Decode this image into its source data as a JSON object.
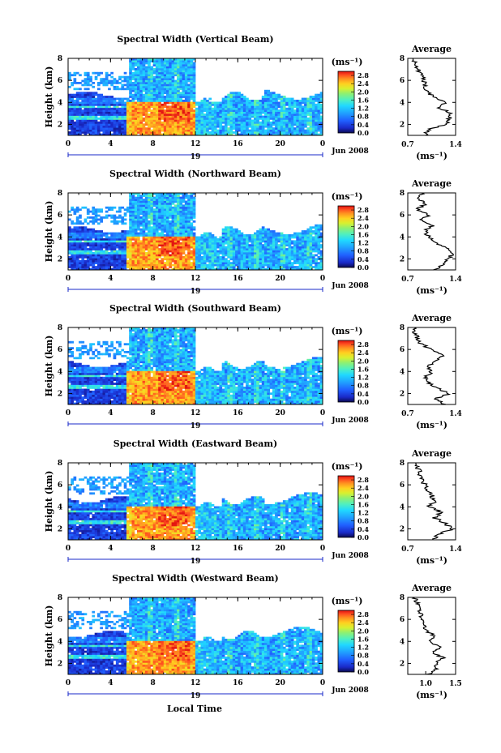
{
  "figure": {
    "xlabel": "Local Time",
    "date_label": "Jun 2008",
    "day_label": "19",
    "avg_title": "Average",
    "avg_xlabel": "(ms⁻¹)",
    "colorbar_unit": "(ms⁻¹)",
    "colorbar_ticks": [
      "0.0",
      "0.4",
      "0.8",
      "1.2",
      "1.6",
      "2.0",
      "2.4",
      "2.8"
    ],
    "colorbar_colors": [
      "#0a0a50",
      "#1a2ac8",
      "#2060ff",
      "#20a0ff",
      "#20d8ff",
      "#50f0c0",
      "#90f070",
      "#d8f030",
      "#ffd020",
      "#ff9020",
      "#ff5020",
      "#e01010"
    ]
  },
  "chart_data": [
    {
      "type": "heatmap",
      "title": "Spectral Width (Vertical Beam)",
      "ylabel": "Height (km)",
      "x_ticks": [
        "0",
        "4",
        "8",
        "12",
        "16",
        "20",
        "0"
      ],
      "y_ticks": [
        "2",
        "4",
        "6",
        "8"
      ],
      "xlim": [
        0,
        24
      ],
      "ylim": [
        1,
        8
      ],
      "avg_profile": {
        "title": "Average",
        "x_ticks": [
          "0.7",
          "1.4"
        ],
        "xlim": [
          0.7,
          1.4
        ],
        "y_ticks": [
          "2",
          "4",
          "6",
          "8"
        ],
        "heights": [
          1.0,
          1.5,
          2.0,
          2.5,
          3.0,
          3.5,
          4.0,
          4.5,
          5.0,
          5.5,
          6.0,
          6.5,
          7.0,
          7.5,
          8.0
        ],
        "values": [
          0.95,
          1.0,
          1.25,
          1.3,
          1.35,
          1.15,
          1.28,
          1.05,
          1.0,
          0.95,
          0.93,
          0.9,
          0.85,
          0.8,
          0.78
        ]
      }
    },
    {
      "type": "heatmap",
      "title": "Spectral Width (Northward Beam)",
      "ylabel": "Height (km)",
      "x_ticks": [
        "0",
        "4",
        "8",
        "12",
        "16",
        "20",
        "0"
      ],
      "y_ticks": [
        "2",
        "4",
        "6",
        "8"
      ],
      "xlim": [
        0,
        24
      ],
      "ylim": [
        1,
        8
      ],
      "avg_profile": {
        "title": "Average",
        "x_ticks": [
          "0.7",
          "1.4"
        ],
        "xlim": [
          0.7,
          1.4
        ],
        "y_ticks": [
          "2",
          "4",
          "6",
          "8"
        ],
        "heights": [
          1.0,
          1.5,
          2.0,
          2.5,
          3.0,
          3.5,
          4.0,
          4.5,
          5.0,
          5.5,
          6.0,
          6.5,
          7.0,
          7.5,
          8.0
        ],
        "values": [
          1.1,
          1.2,
          1.3,
          1.35,
          1.3,
          1.1,
          1.0,
          0.95,
          1.05,
          0.9,
          1.0,
          0.85,
          0.95,
          0.88,
          0.9
        ]
      }
    },
    {
      "type": "heatmap",
      "title": "Spectral Width (Southward Beam)",
      "ylabel": "Height (km)",
      "x_ticks": [
        "0",
        "4",
        "8",
        "12",
        "16",
        "20",
        "0"
      ],
      "y_ticks": [
        "2",
        "4",
        "6",
        "8"
      ],
      "xlim": [
        0,
        24
      ],
      "ylim": [
        1,
        8
      ],
      "avg_profile": {
        "title": "Average",
        "x_ticks": [
          "0.7",
          "1.4"
        ],
        "xlim": [
          0.7,
          1.4
        ],
        "y_ticks": [
          "2",
          "4",
          "6",
          "8"
        ],
        "heights": [
          1.0,
          1.5,
          2.0,
          2.5,
          3.0,
          3.5,
          4.0,
          4.5,
          5.0,
          5.5,
          6.0,
          6.5,
          7.0,
          7.5,
          8.0
        ],
        "values": [
          1.25,
          1.1,
          1.3,
          1.15,
          1.0,
          0.95,
          1.05,
          1.0,
          1.15,
          1.2,
          1.05,
          0.9,
          0.85,
          0.78,
          0.8
        ]
      }
    },
    {
      "type": "heatmap",
      "title": "Spectral Width (Eastward Beam)",
      "ylabel": "Height (km)",
      "x_ticks": [
        "0",
        "4",
        "8",
        "12",
        "16",
        "20",
        "0"
      ],
      "y_ticks": [
        "2",
        "4",
        "6",
        "8"
      ],
      "xlim": [
        0,
        24
      ],
      "ylim": [
        1,
        8
      ],
      "avg_profile": {
        "title": "Average",
        "x_ticks": [
          "0.7",
          "1.4"
        ],
        "xlim": [
          0.7,
          1.4
        ],
        "y_ticks": [
          "2",
          "4",
          "6",
          "8"
        ],
        "heights": [
          1.0,
          1.5,
          2.0,
          2.5,
          3.0,
          3.5,
          4.0,
          4.5,
          5.0,
          5.5,
          6.0,
          6.5,
          7.0,
          7.5,
          8.0
        ],
        "values": [
          1.05,
          1.15,
          1.35,
          1.25,
          1.1,
          1.2,
          1.0,
          1.1,
          1.05,
          0.98,
          0.95,
          0.9,
          0.88,
          0.85,
          0.82
        ]
      }
    },
    {
      "type": "heatmap",
      "title": "Spectral Width (Westward Beam)",
      "ylabel": "Height (km)",
      "x_ticks": [
        "0",
        "4",
        "8",
        "12",
        "16",
        "20",
        "0"
      ],
      "y_ticks": [
        "2",
        "4",
        "6",
        "8"
      ],
      "xlim": [
        0,
        24
      ],
      "ylim": [
        1,
        8
      ],
      "avg_profile": {
        "title": "Average",
        "x_ticks": [
          "1.0",
          "1.5"
        ],
        "xlim": [
          0.7,
          1.5
        ],
        "y_ticks": [
          "2",
          "4",
          "6",
          "8"
        ],
        "heights": [
          1.0,
          1.5,
          2.0,
          2.5,
          3.0,
          3.5,
          4.0,
          4.5,
          5.0,
          5.5,
          6.0,
          6.5,
          7.0,
          7.5,
          8.0
        ],
        "values": [
          1.05,
          1.2,
          1.15,
          1.3,
          1.1,
          1.25,
          1.05,
          1.15,
          1.0,
          0.98,
          0.95,
          0.92,
          0.9,
          0.85,
          0.82
        ]
      }
    }
  ]
}
